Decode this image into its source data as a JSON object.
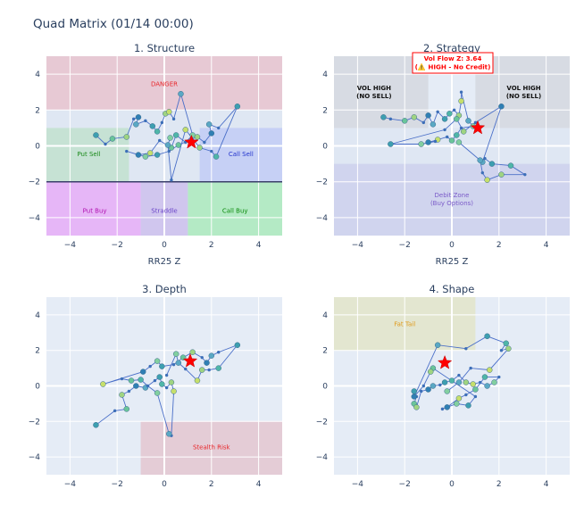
{
  "title": "Quad Matrix (01/14 00:00)",
  "colors": {
    "plot_bg": "#E5ECF6",
    "grid": "#ffffff",
    "line": "#4a6fc8",
    "star": "#ff0000",
    "danger_zone": "#e8a0aa",
    "put_sell_zone": "#a8dcb0",
    "call_sell_zone": "#a8b4f8",
    "put_buy_zone": "#e880f8",
    "straddle_zone": "#c0a8e8",
    "call_buy_zone": "#a0eab0",
    "vol_high_zone": "#d2d6dc",
    "debit_zone": "#c8cceb",
    "stealth_zone": "#e4b2bc",
    "fat_tail_zone": "#e2e6cc",
    "baseline": "#3a3f6a"
  },
  "annotation": {
    "line1": "Vol Flow Z: 3.64",
    "line2": "(⚠️ HIGH - No Credit)",
    "border": "#ff0000",
    "text_color": "#ff0000"
  },
  "chart_data": [
    {
      "type": "scatter",
      "title": "1. Structure",
      "xlabel": "RR25 Z",
      "xlim": [
        -5,
        5
      ],
      "ylim": [
        -5,
        5
      ],
      "xticks": [
        -4,
        -2,
        0,
        2,
        4
      ],
      "yticks": [
        -4,
        -2,
        0,
        2,
        4
      ],
      "grid": true,
      "zones": [
        {
          "label": "",
          "x": [
            -5,
            5
          ],
          "y": [
            -2,
            2
          ],
          "color": "#dfe7f3",
          "opacity": 1
        },
        {
          "label": "DANGER",
          "x": [
            -5,
            5
          ],
          "y": [
            2,
            5
          ],
          "color": "#e8a0aa",
          "opacity": 0.45,
          "text_color": "#e8262a",
          "tx": 0,
          "ty": 3.45
        },
        {
          "label": "Put Sell",
          "x": [
            -5,
            -1.5
          ],
          "y": [
            -2,
            1
          ],
          "color": "#a8dcb0",
          "opacity": 0.45,
          "text_color": "#1a8a1a",
          "tx": -3.2,
          "ty": -0.45
        },
        {
          "label": "Call Sell",
          "x": [
            1.5,
            5
          ],
          "y": [
            -2,
            1
          ],
          "color": "#a8b4f8",
          "opacity": 0.45,
          "text_color": "#2233cc",
          "tx": 3.25,
          "ty": -0.45
        },
        {
          "label": "Put Buy",
          "x": [
            -5,
            -1
          ],
          "y": [
            -5,
            -2
          ],
          "color": "#e880f8",
          "opacity": 0.5,
          "text_color": "#b010b0",
          "tx": -2.95,
          "ty": -3.6
        },
        {
          "label": "Straddle",
          "x": [
            -1,
            1
          ],
          "y": [
            -5,
            -2
          ],
          "color": "#c0a8e8",
          "opacity": 0.55,
          "text_color": "#6a44c8",
          "tx": 0,
          "ty": -3.6
        },
        {
          "label": "Call Buy",
          "x": [
            1,
            5
          ],
          "y": [
            -5,
            -2
          ],
          "color": "#a0eab0",
          "opacity": 0.7,
          "text_color": "#0a8a0a",
          "tx": 3.0,
          "ty": -3.6
        }
      ],
      "baseline_y": -2,
      "points": [
        [
          -2.9,
          0.6
        ],
        [
          -2.5,
          0.1
        ],
        [
          -2.2,
          0.4
        ],
        [
          -1.6,
          0.5
        ],
        [
          -1.3,
          1.5
        ],
        [
          -1.1,
          1.6
        ],
        [
          -1.2,
          1.2
        ],
        [
          -0.8,
          1.4
        ],
        [
          -0.5,
          1.1
        ],
        [
          -0.3,
          0.8
        ],
        [
          -0.1,
          1.3
        ],
        [
          0.05,
          1.8
        ],
        [
          0.2,
          1.9
        ],
        [
          0.4,
          1.5
        ],
        [
          0.7,
          2.9
        ],
        [
          1.2,
          0.6
        ],
        [
          0.9,
          0.2
        ],
        [
          0.5,
          0.6
        ],
        [
          0.3,
          -0.1
        ],
        [
          -0.2,
          0.3
        ],
        [
          -0.6,
          -0.4
        ],
        [
          -1.1,
          -0.5
        ],
        [
          -1.6,
          -0.3
        ],
        [
          -0.8,
          -0.6
        ],
        [
          -0.3,
          -0.5
        ],
        [
          0.2,
          -0.3
        ],
        [
          0.6,
          0.05
        ],
        [
          1.4,
          0.5
        ],
        [
          1.7,
          0.2
        ],
        [
          2.0,
          0.7
        ],
        [
          1.9,
          1.2
        ],
        [
          2.3,
          1.0
        ],
        [
          3.1,
          2.2
        ],
        [
          2.2,
          -0.6
        ],
        [
          2.0,
          -0.3
        ],
        [
          1.5,
          -0.1
        ],
        [
          0.9,
          0.9
        ],
        [
          0.3,
          -1.9
        ],
        [
          0.15,
          0.05
        ],
        [
          0.25,
          0.45
        ]
      ],
      "star": [
        1.15,
        0.2
      ]
    },
    {
      "type": "scatter",
      "title": "2. Strategy",
      "xlabel": "RR25 Z",
      "xlim": [
        -5,
        5
      ],
      "ylim": [
        -5,
        5
      ],
      "xticks": [
        -4,
        -2,
        0,
        2,
        4
      ],
      "yticks": [
        -4,
        -2,
        0,
        2,
        4
      ],
      "grid": true,
      "zones": [
        {
          "label": "",
          "x": [
            -5,
            5
          ],
          "y": [
            -1,
            1
          ],
          "color": "#dfe7f3",
          "opacity": 1
        },
        {
          "label": "VOL HIGH\n(NO SELL)",
          "x": [
            -5,
            -1
          ],
          "y": [
            1,
            5
          ],
          "color": "#d2d6dc",
          "opacity": 0.75,
          "text_color": "#111111",
          "bold": true,
          "tx": -3.3,
          "ty": 3.0
        },
        {
          "label": "VOL HIGH\n(NO SELL)",
          "x": [
            1,
            5
          ],
          "y": [
            1,
            5
          ],
          "color": "#d2d6dc",
          "opacity": 0.75,
          "text_color": "#111111",
          "bold": true,
          "tx": 3.05,
          "ty": 3.0
        },
        {
          "label": "Debit Zone\n(Buy Options)",
          "x": [
            -5,
            5
          ],
          "y": [
            -5,
            -1
          ],
          "color": "#c8cceb",
          "opacity": 0.75,
          "text_color": "#7a5ac8",
          "tx": 0,
          "ty": -2.95
        }
      ],
      "points": [
        [
          -2.9,
          1.6
        ],
        [
          -2.6,
          1.5
        ],
        [
          -2.0,
          1.4
        ],
        [
          -1.6,
          1.6
        ],
        [
          -1.2,
          1.3
        ],
        [
          -1.0,
          1.7
        ],
        [
          -0.8,
          1.2
        ],
        [
          -0.6,
          1.9
        ],
        [
          -0.3,
          1.5
        ],
        [
          -0.1,
          1.8
        ],
        [
          0.1,
          2.0
        ],
        [
          0.3,
          1.7
        ],
        [
          0.4,
          2.5
        ],
        [
          0.4,
          3.0
        ],
        [
          0.7,
          1.4
        ],
        [
          0.9,
          1.1
        ],
        [
          0.4,
          1.0
        ],
        [
          0.2,
          0.6
        ],
        [
          0.0,
          0.3
        ],
        [
          -0.2,
          0.5
        ],
        [
          -0.6,
          0.35
        ],
        [
          -1.0,
          0.2
        ],
        [
          -0.7,
          0.25
        ],
        [
          -1.3,
          0.1
        ],
        [
          -2.6,
          0.1
        ],
        [
          -0.3,
          0.9
        ],
        [
          0.2,
          1.5
        ],
        [
          0.5,
          0.8
        ],
        [
          1.0,
          1.3
        ],
        [
          2.1,
          2.2
        ],
        [
          1.3,
          -0.9
        ],
        [
          1.4,
          -0.7
        ],
        [
          1.7,
          -1.0
        ],
        [
          2.5,
          -1.1
        ],
        [
          3.1,
          -1.6
        ],
        [
          2.1,
          -1.6
        ],
        [
          1.5,
          -1.9
        ],
        [
          1.3,
          -1.5
        ],
        [
          1.2,
          -0.8
        ],
        [
          0.3,
          0.2
        ]
      ],
      "star": [
        1.1,
        1.0
      ]
    },
    {
      "type": "scatter",
      "title": "3. Depth",
      "xlabel": "",
      "xlim": [
        -5,
        5
      ],
      "ylim": [
        -5,
        5
      ],
      "xticks": [
        -4,
        -2,
        0,
        2,
        4
      ],
      "yticks": [
        -4,
        -2,
        0,
        2,
        4
      ],
      "grid": true,
      "zones": [
        {
          "label": "Stealth Risk",
          "x": [
            -1,
            5
          ],
          "y": [
            -5,
            -2
          ],
          "color": "#e4b2bc",
          "opacity": 0.55,
          "text_color": "#e8262a",
          "tx": 2.0,
          "ty": -3.45
        }
      ],
      "points": [
        [
          -2.9,
          -2.2
        ],
        [
          -2.1,
          -1.4
        ],
        [
          -1.6,
          -1.3
        ],
        [
          -1.8,
          -0.5
        ],
        [
          -1.5,
          -0.3
        ],
        [
          -1.2,
          0.0
        ],
        [
          -0.8,
          -0.1
        ],
        [
          -0.4,
          0.3
        ],
        [
          -0.2,
          0.5
        ],
        [
          -0.1,
          0.1
        ],
        [
          0.1,
          -0.1
        ],
        [
          0.3,
          0.2
        ],
        [
          0.4,
          -0.3
        ],
        [
          0.3,
          -2.8
        ],
        [
          0.2,
          -2.7
        ],
        [
          -0.3,
          -0.4
        ],
        [
          -0.7,
          0.0
        ],
        [
          -1.0,
          0.35
        ],
        [
          -1.4,
          0.3
        ],
        [
          -1.8,
          0.4
        ],
        [
          -2.6,
          0.1
        ],
        [
          -0.9,
          0.8
        ],
        [
          -0.6,
          1.1
        ],
        [
          -0.3,
          1.4
        ],
        [
          -0.1,
          1.1
        ],
        [
          0.4,
          1.2
        ],
        [
          0.8,
          1.6
        ],
        [
          1.2,
          1.9
        ],
        [
          1.6,
          1.6
        ],
        [
          1.8,
          1.3
        ],
        [
          2.0,
          1.7
        ],
        [
          2.3,
          1.9
        ],
        [
          3.1,
          2.3
        ],
        [
          2.3,
          1.0
        ],
        [
          1.9,
          0.9
        ],
        [
          1.6,
          0.9
        ],
        [
          1.4,
          0.3
        ],
        [
          0.9,
          0.95
        ],
        [
          0.6,
          1.3
        ],
        [
          0.5,
          1.8
        ],
        [
          0.1,
          0.6
        ]
      ],
      "star": [
        1.1,
        1.4
      ]
    },
    {
      "type": "scatter",
      "title": "4. Shape",
      "xlabel": "",
      "xlim": [
        -5,
        5
      ],
      "ylim": [
        -5,
        5
      ],
      "xticks": [
        -4,
        -2,
        0,
        2,
        4
      ],
      "yticks": [
        -4,
        -2,
        0,
        2,
        4
      ],
      "grid": true,
      "zones": [
        {
          "label": "Fat Tail",
          "x": [
            -5,
            1
          ],
          "y": [
            2,
            5
          ],
          "color": "#e2e6cc",
          "opacity": 0.9,
          "text_color": "#e09a1a",
          "tx": -2.0,
          "ty": 3.5
        }
      ],
      "points": [
        [
          -1.6,
          -0.3
        ],
        [
          -1.5,
          -0.6
        ],
        [
          -1.6,
          -1.0
        ],
        [
          -1.5,
          -1.2
        ],
        [
          -1.3,
          -0.3
        ],
        [
          -1.0,
          -0.2
        ],
        [
          -0.8,
          0.0
        ],
        [
          -0.5,
          0.05
        ],
        [
          -0.3,
          0.2
        ],
        [
          0.0,
          0.3
        ],
        [
          0.3,
          0.6
        ],
        [
          0.6,
          0.2
        ],
        [
          0.9,
          0.1
        ],
        [
          1.2,
          0.2
        ],
        [
          1.5,
          0.0
        ],
        [
          1.8,
          0.2
        ],
        [
          2.0,
          0.5
        ],
        [
          1.4,
          0.5
        ],
        [
          1.0,
          -0.2
        ],
        [
          0.6,
          -0.5
        ],
        [
          0.3,
          -0.7
        ],
        [
          -0.2,
          -1.2
        ],
        [
          -0.4,
          -1.3
        ],
        [
          0.2,
          -1.0
        ],
        [
          0.7,
          -1.1
        ],
        [
          1.0,
          -0.6
        ],
        [
          -0.8,
          1.0
        ],
        [
          -0.9,
          0.8
        ],
        [
          -1.2,
          0.0
        ],
        [
          -1.6,
          -0.6
        ],
        [
          -0.6,
          2.3
        ],
        [
          0.6,
          2.1
        ],
        [
          1.5,
          2.8
        ],
        [
          2.3,
          2.4
        ],
        [
          2.1,
          2.0
        ],
        [
          2.4,
          2.1
        ],
        [
          1.6,
          0.9
        ],
        [
          0.8,
          1.0
        ],
        [
          0.3,
          0.2
        ],
        [
          -0.2,
          -0.3
        ]
      ],
      "star": [
        -0.3,
        1.3
      ]
    }
  ]
}
